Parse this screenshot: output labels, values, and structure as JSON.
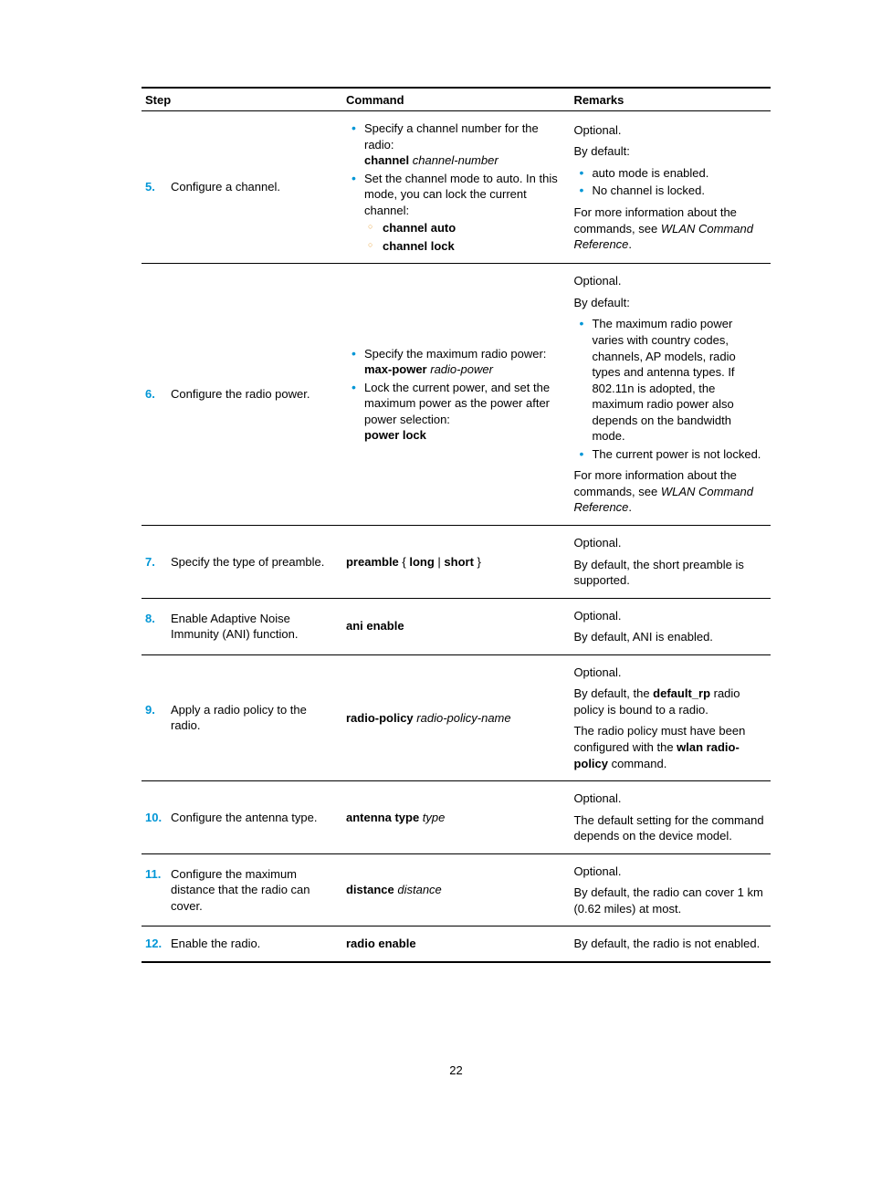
{
  "page_number": "22",
  "headers": {
    "step": "Step",
    "command": "Command",
    "remarks": "Remarks"
  },
  "rows": [
    {
      "num": "5.",
      "step": "Configure a channel.",
      "command": {
        "bullets": [
          {
            "lines": [
              "Specify a channel number for the radio:",
              {
                "b": "channel",
                "rest": " ",
                "i": "channel-number"
              }
            ]
          },
          {
            "lines": [
              "Set the channel mode to auto. In this mode, you can lock the current channel:"
            ],
            "sub": [
              {
                "b": "channel auto"
              },
              {
                "b": "channel lock"
              }
            ]
          }
        ]
      },
      "remarks": {
        "paras": [
          "Optional.",
          "By default:"
        ],
        "bullets": [
          "auto mode is enabled.",
          "No channel is locked."
        ],
        "after": [
          {
            "pre": "For more information about the commands, see ",
            "i": "WLAN Command Reference",
            "post": "."
          }
        ]
      }
    },
    {
      "num": "6.",
      "step": "Configure the radio power.",
      "command": {
        "bullets": [
          {
            "lines": [
              "Specify the maximum radio power:",
              {
                "b": "max-power",
                "rest": " ",
                "i": "radio-power"
              }
            ]
          },
          {
            "lines": [
              "Lock the current power, and set the maximum power as the power after power selection:",
              {
                "b": "power lock"
              }
            ]
          }
        ]
      },
      "remarks": {
        "paras": [
          "Optional.",
          "By default:"
        ],
        "bullets": [
          "The maximum radio power varies with country codes, channels, AP models, radio types and antenna types. If 802.11n is adopted, the maximum radio power also depends on the bandwidth mode.",
          "The current power is not locked."
        ],
        "after": [
          {
            "pre": "For more information about the commands, see ",
            "i": "WLAN Command Reference",
            "post": "."
          }
        ]
      }
    },
    {
      "num": "7.",
      "step": "Specify the type of preamble.",
      "command": {
        "plain": [
          {
            "b": "preamble",
            "rest": " { ",
            "b2": "long",
            "mid": " | ",
            "b3": "short",
            "end": " }"
          }
        ]
      },
      "remarks": {
        "paras": [
          "Optional.",
          "By default, the short preamble is supported."
        ]
      }
    },
    {
      "num": "8.",
      "step": "Enable Adaptive Noise Immunity (ANI) function.",
      "command": {
        "plain": [
          {
            "b": "ani enable"
          }
        ]
      },
      "remarks": {
        "paras": [
          "Optional.",
          "By default, ANI is enabled."
        ]
      }
    },
    {
      "num": "9.",
      "step": "Apply a radio policy to the radio.",
      "command": {
        "plain": [
          {
            "b": "radio-policy",
            "rest": " ",
            "i": "radio-policy-name"
          }
        ]
      },
      "remarks": {
        "paras": [
          "Optional.",
          {
            "pre": "By default, the ",
            "b": "default_rp",
            "post": " radio policy is bound to a radio."
          },
          {
            "pre": "The radio policy must have been configured with the ",
            "b": "wlan radio-policy",
            "post": " command."
          }
        ]
      }
    },
    {
      "num": "10.",
      "step": "Configure the antenna type.",
      "command": {
        "plain": [
          {
            "b": "antenna type",
            "rest": " ",
            "i": "type"
          }
        ]
      },
      "remarks": {
        "paras": [
          "Optional.",
          "The default setting for the command depends on the device model."
        ]
      }
    },
    {
      "num": "11.",
      "step": "Configure the maximum distance that the radio can cover.",
      "command": {
        "plain": [
          {
            "b": "distance",
            "rest": " ",
            "i": "distance"
          }
        ]
      },
      "remarks": {
        "paras": [
          "Optional.",
          "By default, the radio can cover 1 km (0.62 miles) at most."
        ]
      }
    },
    {
      "num": "12.",
      "step": "Enable the radio.",
      "command": {
        "plain": [
          {
            "b": "radio enable"
          }
        ]
      },
      "remarks": {
        "paras": [
          "By default, the radio is not enabled."
        ]
      }
    }
  ]
}
